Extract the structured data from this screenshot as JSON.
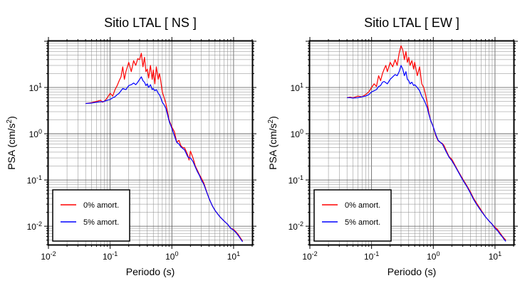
{
  "chart_data": [
    {
      "type": "line",
      "title": "Sitio LTAL [ NS ]",
      "xlabel": "Periodo (s)",
      "ylabel_main": "PSA (cm/s",
      "ylabel_sup": "2",
      "ylabel_end": ")",
      "xscale": "log",
      "yscale": "log",
      "xlim": [
        0.01,
        20
      ],
      "ylim": [
        0.004,
        100
      ],
      "grid": true,
      "legend_position": "bottom-left",
      "xticks": [
        {
          "value": 0.01,
          "base": "10",
          "exp": "-2"
        },
        {
          "value": 0.1,
          "base": "10",
          "exp": "-1"
        },
        {
          "value": 1,
          "base": "10",
          "exp": "0"
        },
        {
          "value": 10,
          "base": "10",
          "exp": "1"
        }
      ],
      "yticks": [
        {
          "value": 0.01,
          "base": "10",
          "exp": "-2"
        },
        {
          "value": 0.1,
          "base": "10",
          "exp": "-1"
        },
        {
          "value": 1,
          "base": "10",
          "exp": "0"
        },
        {
          "value": 10,
          "base": "10",
          "exp": "1"
        }
      ],
      "series": [
        {
          "name": "0% amort.",
          "color": "#ff0000",
          "x": [
            0.04,
            0.05,
            0.06,
            0.07,
            0.075,
            0.08,
            0.09,
            0.1,
            0.11,
            0.12,
            0.13,
            0.14,
            0.15,
            0.16,
            0.17,
            0.18,
            0.2,
            0.22,
            0.24,
            0.26,
            0.28,
            0.3,
            0.32,
            0.34,
            0.36,
            0.38,
            0.4,
            0.42,
            0.45,
            0.48,
            0.5,
            0.53,
            0.56,
            0.6,
            0.63,
            0.66,
            0.7,
            0.75,
            0.8,
            0.85,
            0.9,
            1.0,
            1.1,
            1.2,
            1.3,
            1.4,
            1.5,
            1.6,
            1.7,
            1.8,
            1.9,
            2.0,
            2.2,
            2.4,
            2.6,
            2.8,
            3.0,
            3.3,
            3.6,
            4.0,
            4.5,
            5,
            6,
            7,
            8,
            9,
            10,
            11,
            12,
            13,
            14
          ],
          "y": [
            4.5,
            4.7,
            5.0,
            5.3,
            4.8,
            5.0,
            6.0,
            7.5,
            6.5,
            9.0,
            11.0,
            14.0,
            17.0,
            28.0,
            15.0,
            22.0,
            35.0,
            22.0,
            38.0,
            30.0,
            42.0,
            40.0,
            55.0,
            28.0,
            45.0,
            22.0,
            25.0,
            16.0,
            30.0,
            15.0,
            24.0,
            12.0,
            28.0,
            15.0,
            20.0,
            14.0,
            8.0,
            6.0,
            4.5,
            3.0,
            2.0,
            1.4,
            1.1,
            0.65,
            0.72,
            0.55,
            0.5,
            0.5,
            0.42,
            0.35,
            0.27,
            0.42,
            0.3,
            0.2,
            0.16,
            0.13,
            0.11,
            0.085,
            0.06,
            0.04,
            0.028,
            0.022,
            0.016,
            0.013,
            0.011,
            0.009,
            0.0085,
            0.0075,
            0.0065,
            0.0055,
            0.0048
          ]
        },
        {
          "name": "5% amort.",
          "color": "#0000ff",
          "x": [
            0.04,
            0.05,
            0.06,
            0.07,
            0.08,
            0.09,
            0.1,
            0.11,
            0.12,
            0.13,
            0.14,
            0.15,
            0.16,
            0.18,
            0.2,
            0.22,
            0.24,
            0.26,
            0.28,
            0.3,
            0.32,
            0.34,
            0.36,
            0.38,
            0.4,
            0.42,
            0.45,
            0.48,
            0.5,
            0.53,
            0.56,
            0.6,
            0.63,
            0.66,
            0.7,
            0.75,
            0.8,
            0.85,
            0.9,
            1.0,
            1.1,
            1.2,
            1.3,
            1.4,
            1.5,
            1.6,
            1.7,
            1.8,
            1.9,
            2.0,
            2.2,
            2.4,
            2.6,
            2.8,
            3.0,
            3.3,
            3.6,
            4.0,
            4.5,
            5,
            6,
            7,
            8,
            9,
            10,
            11,
            12,
            13,
            14
          ],
          "y": [
            4.5,
            4.6,
            4.8,
            4.9,
            5.0,
            5.3,
            5.5,
            6.0,
            6.3,
            7.0,
            7.5,
            8.5,
            9.5,
            9.0,
            11.0,
            11.5,
            12.5,
            11.5,
            13.0,
            15.0,
            17.0,
            14.0,
            13.0,
            11.0,
            12.0,
            10.0,
            11.5,
            9.0,
            9.5,
            8.5,
            9.0,
            7.5,
            7.0,
            6.0,
            4.8,
            4.2,
            3.5,
            2.6,
            1.9,
            1.3,
            0.9,
            0.65,
            0.6,
            0.52,
            0.48,
            0.45,
            0.38,
            0.32,
            0.3,
            0.3,
            0.25,
            0.19,
            0.15,
            0.125,
            0.1,
            0.08,
            0.058,
            0.04,
            0.028,
            0.022,
            0.016,
            0.013,
            0.011,
            0.009,
            0.0082,
            0.0072,
            0.0062,
            0.0053,
            0.0046
          ]
        }
      ]
    },
    {
      "type": "line",
      "title": "Sitio LTAL [ EW ]",
      "xlabel": "Periodo (s)",
      "ylabel_main": "PSA (cm/s",
      "ylabel_sup": "2",
      "ylabel_end": ")",
      "xscale": "log",
      "yscale": "log",
      "xlim": [
        0.01,
        20
      ],
      "ylim": [
        0.004,
        100
      ],
      "grid": true,
      "legend_position": "bottom-left",
      "xticks": [
        {
          "value": 0.01,
          "base": "10",
          "exp": "-2"
        },
        {
          "value": 0.1,
          "base": "10",
          "exp": "-1"
        },
        {
          "value": 1,
          "base": "10",
          "exp": "0"
        },
        {
          "value": 10,
          "base": "10",
          "exp": "1"
        }
      ],
      "yticks": [
        {
          "value": 0.01,
          "base": "10",
          "exp": "-2"
        },
        {
          "value": 0.1,
          "base": "10",
          "exp": "-1"
        },
        {
          "value": 1,
          "base": "10",
          "exp": "0"
        },
        {
          "value": 10,
          "base": "10",
          "exp": "1"
        }
      ],
      "series": [
        {
          "name": "0% amort.",
          "color": "#ff0000",
          "x": [
            0.04,
            0.045,
            0.05,
            0.06,
            0.07,
            0.08,
            0.09,
            0.1,
            0.11,
            0.12,
            0.13,
            0.14,
            0.15,
            0.16,
            0.17,
            0.18,
            0.2,
            0.22,
            0.24,
            0.26,
            0.28,
            0.3,
            0.32,
            0.34,
            0.36,
            0.38,
            0.4,
            0.42,
            0.45,
            0.48,
            0.5,
            0.55,
            0.6,
            0.65,
            0.7,
            0.75,
            0.8,
            0.85,
            0.9,
            1.0,
            1.1,
            1.2,
            1.3,
            1.4,
            1.5,
            1.6,
            1.8,
            2.0,
            2.2,
            2.5,
            3.0,
            3.5,
            4.0,
            4.5,
            5,
            6,
            7,
            8,
            9,
            10,
            11,
            12,
            13,
            14,
            15
          ],
          "y": [
            6.0,
            6.2,
            6.0,
            6.5,
            6.3,
            7.0,
            8.0,
            10.0,
            12.0,
            10.5,
            18.0,
            14.0,
            20.0,
            25.0,
            30.0,
            22.0,
            35.0,
            28.0,
            40.0,
            30.0,
            55.0,
            80.0,
            65.0,
            40.0,
            60.0,
            35.0,
            45.0,
            30.0,
            38.0,
            25.0,
            35.0,
            18.0,
            28.0,
            12.0,
            10.0,
            7.0,
            4.5,
            2.8,
            2.0,
            1.4,
            0.9,
            0.7,
            0.65,
            0.62,
            0.55,
            0.45,
            0.32,
            0.28,
            0.22,
            0.16,
            0.105,
            0.075,
            0.055,
            0.04,
            0.032,
            0.022,
            0.016,
            0.013,
            0.011,
            0.0095,
            0.0085,
            0.0072,
            0.0062,
            0.0055,
            0.005
          ]
        },
        {
          "name": "5% amort.",
          "color": "#0000ff",
          "x": [
            0.04,
            0.045,
            0.05,
            0.06,
            0.07,
            0.08,
            0.09,
            0.1,
            0.11,
            0.12,
            0.13,
            0.14,
            0.15,
            0.16,
            0.18,
            0.2,
            0.22,
            0.24,
            0.26,
            0.28,
            0.3,
            0.32,
            0.34,
            0.36,
            0.38,
            0.4,
            0.42,
            0.45,
            0.48,
            0.5,
            0.55,
            0.6,
            0.65,
            0.7,
            0.75,
            0.8,
            0.85,
            0.9,
            1.0,
            1.1,
            1.2,
            1.3,
            1.4,
            1.5,
            1.6,
            1.8,
            2.0,
            2.2,
            2.5,
            3.0,
            3.5,
            4.0,
            4.5,
            5,
            6,
            7,
            8,
            9,
            10,
            11,
            12,
            13,
            14,
            15
          ],
          "y": [
            6.0,
            6.0,
            5.9,
            6.0,
            6.3,
            6.5,
            7.0,
            8.0,
            8.5,
            9.0,
            10.5,
            11.0,
            13.0,
            13.5,
            12.0,
            15.0,
            17.0,
            19.0,
            18.0,
            22.0,
            30.0,
            25.0,
            18.0,
            22.0,
            15.0,
            14.0,
            12.0,
            13.0,
            11.0,
            11.5,
            10.0,
            8.5,
            6.5,
            5.5,
            4.5,
            3.6,
            2.6,
            2.0,
            1.4,
            0.95,
            0.72,
            0.65,
            0.6,
            0.5,
            0.42,
            0.31,
            0.26,
            0.21,
            0.155,
            0.1,
            0.072,
            0.052,
            0.038,
            0.03,
            0.021,
            0.016,
            0.013,
            0.011,
            0.009,
            0.008,
            0.0068,
            0.006,
            0.0052,
            0.0047
          ]
        }
      ]
    }
  ]
}
